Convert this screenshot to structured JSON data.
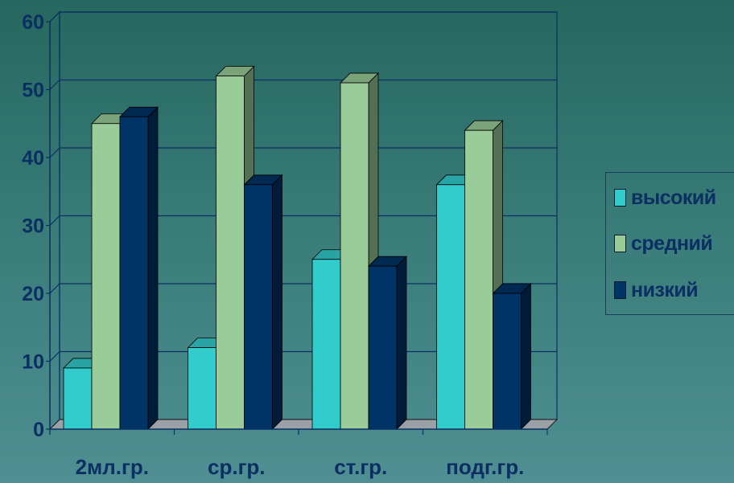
{
  "chart_data": {
    "type": "bar",
    "categories": [
      "2мл.гр.",
      "ср.гр.",
      "ст.гр.",
      "подг.гр."
    ],
    "series": [
      {
        "name": "высокий",
        "values": [
          9,
          12,
          25,
          36
        ],
        "color": "#33cccc"
      },
      {
        "name": "средний",
        "values": [
          45,
          52,
          51,
          44
        ],
        "color": "#99cc99"
      },
      {
        "name": "низкий",
        "values": [
          46,
          36,
          24,
          20
        ],
        "color": "#003366"
      }
    ],
    "y_ticks": [
      "0",
      "10",
      "20",
      "30",
      "40",
      "50",
      "60"
    ],
    "ylim": [
      0,
      60
    ],
    "grid": true,
    "legend_position": "right",
    "title": "",
    "xlabel": "",
    "ylabel": ""
  }
}
